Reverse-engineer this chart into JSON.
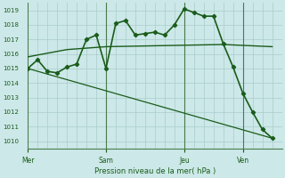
{
  "background_color": "#cce8e8",
  "grid_color": "#aacccc",
  "line_color": "#1a5c1a",
  "xlabel": "Pression niveau de la mer( hPa )",
  "ylim": [
    1009.5,
    1019.5
  ],
  "yticks": [
    1010,
    1011,
    1012,
    1013,
    1014,
    1015,
    1016,
    1017,
    1018,
    1019
  ],
  "xtick_labels": [
    "Mer",
    "Sam",
    "Jeu",
    "Ven"
  ],
  "xtick_positions": [
    0,
    8,
    16,
    22
  ],
  "xlim": [
    0,
    26
  ],
  "line1_x": [
    0,
    1,
    2,
    3,
    4,
    5,
    6,
    7,
    8,
    9,
    10,
    11,
    12,
    13,
    14,
    15,
    16,
    17,
    18,
    19,
    20,
    21,
    22,
    23,
    24,
    25
  ],
  "line1_y": [
    1015.0,
    1015.6,
    1014.8,
    1014.7,
    1015.1,
    1015.3,
    1017.0,
    1017.3,
    1015.0,
    1018.1,
    1018.3,
    1017.3,
    1017.4,
    1017.5,
    1017.3,
    1018.0,
    1019.1,
    1018.85,
    1018.6,
    1018.6,
    1016.7,
    1015.1,
    1013.3,
    1012.0,
    1010.8,
    1010.2
  ],
  "line2_x": [
    0,
    4,
    8,
    12,
    16,
    20,
    25
  ],
  "line2_y": [
    1015.8,
    1016.3,
    1016.5,
    1016.55,
    1016.6,
    1016.65,
    1016.5
  ],
  "line3_x": [
    0,
    25
  ],
  "line3_y": [
    1015.0,
    1010.2
  ],
  "vline_positions": [
    0,
    8,
    16,
    22
  ]
}
